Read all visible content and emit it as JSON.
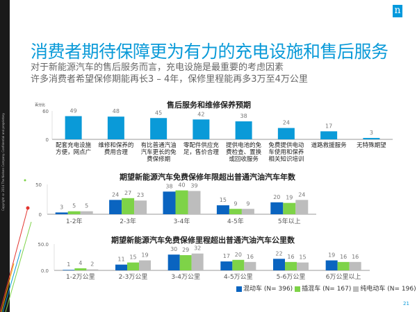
{
  "copyright": "Copyright © 2014 The Nielsen Company. Confidential and proprietary.",
  "logo_letter": "n",
  "title": "消费者期待保障更为有力的充电设施和售后服务",
  "subtitle_lines": [
    "对于新能源汽车的售后服务而言，充电设施是最重要的考虑因素",
    "许多消费者希望保修期能再长3 – 4年，保修里程能再多3万至4万公里"
  ],
  "page_number": "21",
  "colors": {
    "accent": "#0a9ad8",
    "bar_single": "#0a9ad8",
    "hybrid": "#0a64c0",
    "plugin": "#7ed348",
    "ev": "#bdbdbd"
  },
  "legend": [
    {
      "label": "混动车 (N= 396)",
      "color": "#0a64c0"
    },
    {
      "label": "插混车 (N= 167)",
      "color": "#7ed348"
    },
    {
      "label": "纯电动车 (N= 196)",
      "color": "#bdbdbd"
    }
  ],
  "chart_data": [
    {
      "type": "bar",
      "title": "售后服务和维修保养预期",
      "ylabel": "百分比",
      "ylim": [
        0,
        60
      ],
      "yticks": [
        "0",
        "60"
      ],
      "categories": [
        "配套充电设施方便，网点广",
        "维修和保养的费用合理",
        "有比普通汽油汽车更长的免费保修期",
        "零配件供应充足，售价合理",
        "提供电池的免费检查、置换或回收服务",
        "免费提供电动车使用和保养相关知识培训",
        "道路救援服务",
        "无特殊期望"
      ],
      "values": [
        49,
        48,
        45,
        42,
        38,
        24,
        17,
        3
      ]
    },
    {
      "type": "bar",
      "title": "期望新能源汽车免费保修年限超出普通汽油汽车年数",
      "ylim": [
        0,
        50
      ],
      "yticks": [
        "0",
        "50"
      ],
      "categories": [
        "1-2年",
        "2-3年",
        "3-4年",
        "4-5年",
        "5年以上"
      ],
      "series": [
        {
          "name": "混动车 (N= 396)",
          "values": [
            3,
            24,
            38,
            15,
            20
          ]
        },
        {
          "name": "插混车 (N= 167)",
          "values": [
            5,
            27,
            40,
            9,
            19
          ]
        },
        {
          "name": "纯电动车 (N= 196)",
          "values": [
            5,
            23,
            39,
            9,
            24
          ]
        }
      ],
      "legend": "bottom-right"
    },
    {
      "type": "bar",
      "title": "期望新能源汽车免费保修里程超出普通汽油汽车公里数",
      "ylim": [
        0,
        50
      ],
      "yticks": [
        "0.0",
        "50.0"
      ],
      "categories": [
        "1-2万公里",
        "2-3万公里",
        "3-4万公里",
        "4-5万公里",
        "5-6万公里",
        "6万公里以上"
      ],
      "series": [
        {
          "name": "混动车 (N= 396)",
          "values": [
            1,
            11,
            30,
            17,
            22,
            19
          ]
        },
        {
          "name": "插混车 (N= 167)",
          "values": [
            4,
            15,
            29,
            20,
            16,
            16
          ]
        },
        {
          "name": "纯电动车 (N= 196)",
          "values": [
            2,
            19,
            32,
            16,
            15,
            16
          ]
        }
      ],
      "legend": "bottom-right"
    }
  ]
}
